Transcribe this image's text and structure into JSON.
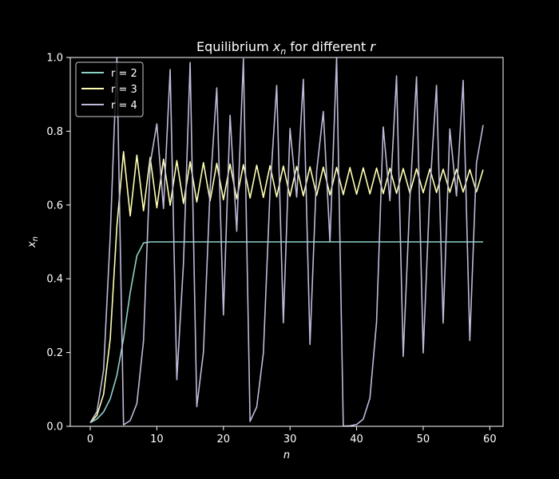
{
  "chart_data": {
    "type": "line",
    "title_prefix": "Equilibrium ",
    "title_var": "x",
    "title_var_sub": "n",
    "title_mid": " for different ",
    "title_r": "r",
    "xlabel": "n",
    "ylabel_var": "x",
    "ylabel_sub": "n",
    "xlim": [
      -3,
      62
    ],
    "ylim": [
      0,
      1
    ],
    "xticks": [
      0,
      10,
      20,
      30,
      40,
      50,
      60
    ],
    "xtick_labels": [
      "0",
      "10",
      "20",
      "30",
      "40",
      "50",
      "60"
    ],
    "yticks": [
      0,
      0.2,
      0.4,
      0.6,
      0.8,
      1.0
    ],
    "ytick_labels": [
      "0.0",
      "0.2",
      "0.4",
      "0.6",
      "0.8",
      "1.0"
    ],
    "legend_position": "top-left",
    "colors": {
      "background": "#000000",
      "axes": "#ffffff"
    },
    "series": [
      {
        "name": "r = 2",
        "color": "#8dd3c7",
        "values": [
          0.01,
          0.0198,
          0.0388,
          0.0746,
          0.1381,
          0.238,
          0.3627,
          0.4623,
          0.4971,
          0.5,
          0.5,
          0.5,
          0.5,
          0.5,
          0.5,
          0.5,
          0.5,
          0.5,
          0.5,
          0.5,
          0.5,
          0.5,
          0.5,
          0.5,
          0.5,
          0.5,
          0.5,
          0.5,
          0.5,
          0.5,
          0.5,
          0.5,
          0.5,
          0.5,
          0.5,
          0.5,
          0.5,
          0.5,
          0.5,
          0.5,
          0.5,
          0.5,
          0.5,
          0.5,
          0.5,
          0.5,
          0.5,
          0.5,
          0.5,
          0.5,
          0.5,
          0.5,
          0.5,
          0.5,
          0.5,
          0.5,
          0.5,
          0.5,
          0.5,
          0.5
        ]
      },
      {
        "name": "r = 3",
        "color": "#ffffb3",
        "values": [
          0.01,
          0.0297,
          0.0865,
          0.237,
          0.5425,
          0.7446,
          0.5706,
          0.7351,
          0.5843,
          0.729,
          0.5926,
          0.7243,
          0.5992,
          0.7205,
          0.6042,
          0.7174,
          0.6082,
          0.7149,
          0.6115,
          0.7128,
          0.6143,
          0.711,
          0.6167,
          0.7094,
          0.6188,
          0.708,
          0.6206,
          0.7067,
          0.6222,
          0.7056,
          0.6236,
          0.7046,
          0.6249,
          0.7037,
          0.6261,
          0.7029,
          0.6272,
          0.7021,
          0.6282,
          0.7014,
          0.6292,
          0.7007,
          0.6301,
          0.7001,
          0.6309,
          0.6995,
          0.6317,
          0.6989,
          0.6325,
          0.6983,
          0.6332,
          0.6978,
          0.6339,
          0.6973,
          0.6345,
          0.6968,
          0.6351,
          0.6963,
          0.6357,
          0.6958
        ]
      },
      {
        "name": "r = 4",
        "color": "#bebada",
        "values": [
          0.01,
          0.0396,
          0.1521,
          0.5159,
          0.999,
          0.0039,
          0.0157,
          0.0617,
          0.2317,
          0.7121,
          0.82,
          0.5904,
          0.9673,
          0.1265,
          0.442,
          0.9865,
          0.0532,
          0.2014,
          0.6434,
          0.9177,
          0.302,
          0.8432,
          0.5289,
          0.9967,
          0.0133,
          0.0525,
          0.1991,
          0.6378,
          0.9241,
          0.2807,
          0.8076,
          0.6215,
          0.941,
          0.2222,
          0.6913,
          0.8536,
          0.4998,
          0.9999,
          0.0003,
          0.0012,
          0.0049,
          0.0195,
          0.0766,
          0.283,
          0.8116,
          0.6117,
          0.9501,
          0.1896,
          0.6146,
          0.9475,
          0.199,
          0.6376,
          0.9243,
          0.28,
          0.8064,
          0.6245,
          0.938,
          0.2326,
          0.714,
          0.8168
        ]
      }
    ]
  }
}
